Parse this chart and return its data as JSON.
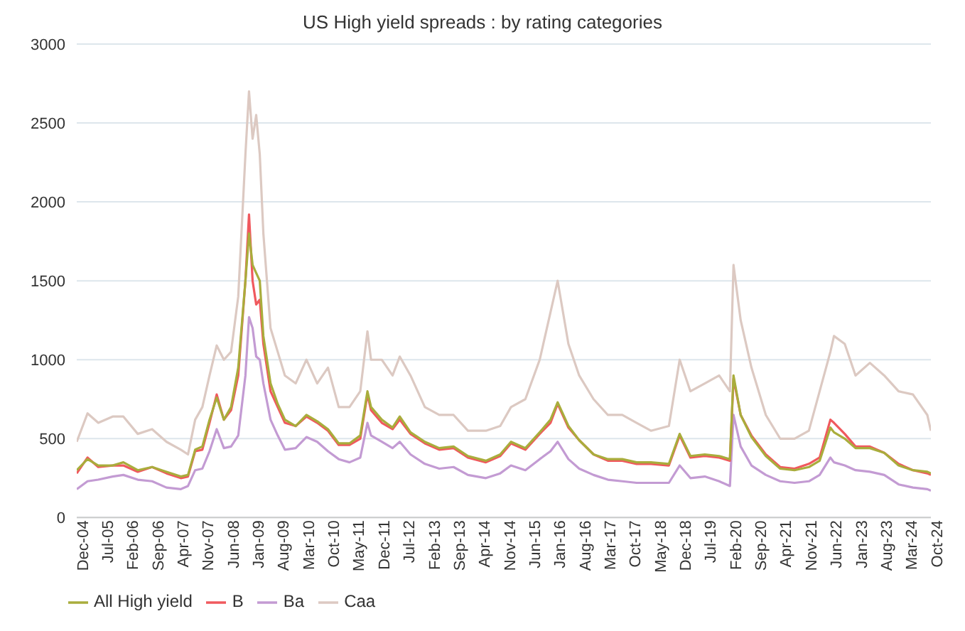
{
  "chart_data": {
    "type": "line",
    "title": "US High yield spreads : by rating categories",
    "x": [
      "2004-12",
      "2005-03",
      "2005-06",
      "2005-10",
      "2006-01",
      "2006-05",
      "2006-09",
      "2007-01",
      "2007-05",
      "2007-07",
      "2007-09",
      "2007-11",
      "2008-01",
      "2008-03",
      "2008-05",
      "2008-07",
      "2008-09",
      "2008-11",
      "2008-12",
      "2009-01",
      "2009-02",
      "2009-03",
      "2009-04",
      "2009-06",
      "2009-08",
      "2009-10",
      "2010-01",
      "2010-04",
      "2010-07",
      "2010-10",
      "2011-01",
      "2011-04",
      "2011-07",
      "2011-09",
      "2011-10",
      "2012-01",
      "2012-04",
      "2012-06",
      "2012-09",
      "2013-01",
      "2013-05",
      "2013-09",
      "2014-01",
      "2014-06",
      "2014-10",
      "2015-01",
      "2015-05",
      "2015-09",
      "2015-12",
      "2016-02",
      "2016-05",
      "2016-08",
      "2016-12",
      "2017-04",
      "2017-08",
      "2017-12",
      "2018-04",
      "2018-09",
      "2018-12",
      "2019-03",
      "2019-07",
      "2019-11",
      "2020-02",
      "2020-03",
      "2020-05",
      "2020-08",
      "2020-12",
      "2021-04",
      "2021-08",
      "2021-12",
      "2022-03",
      "2022-06",
      "2022-07",
      "2022-10",
      "2023-01",
      "2023-05",
      "2023-09",
      "2024-01",
      "2024-05",
      "2024-09",
      "2024-10"
    ],
    "series": [
      {
        "name": "Ba",
        "color": "#c39bd3",
        "values": [
          180,
          230,
          240,
          260,
          270,
          240,
          230,
          190,
          180,
          200,
          300,
          310,
          420,
          560,
          440,
          450,
          520,
          900,
          1270,
          1200,
          1020,
          1000,
          850,
          620,
          520,
          430,
          440,
          510,
          480,
          420,
          370,
          350,
          380,
          600,
          520,
          480,
          440,
          480,
          400,
          340,
          310,
          320,
          270,
          250,
          280,
          330,
          300,
          370,
          420,
          480,
          370,
          310,
          270,
          240,
          230,
          220,
          220,
          220,
          330,
          250,
          260,
          230,
          200,
          650,
          450,
          330,
          270,
          230,
          220,
          230,
          270,
          380,
          350,
          330,
          300,
          290,
          270,
          210,
          190,
          180,
          170
        ]
      },
      {
        "name": "B",
        "color": "#f0595e",
        "values": [
          280,
          380,
          320,
          330,
          330,
          290,
          320,
          280,
          250,
          260,
          420,
          430,
          600,
          780,
          620,
          680,
          900,
          1500,
          1920,
          1500,
          1350,
          1380,
          1100,
          800,
          700,
          600,
          580,
          640,
          600,
          550,
          460,
          460,
          500,
          780,
          680,
          600,
          560,
          620,
          530,
          470,
          430,
          440,
          380,
          350,
          390,
          470,
          430,
          530,
          600,
          720,
          570,
          490,
          400,
          360,
          360,
          340,
          340,
          330,
          520,
          380,
          390,
          380,
          360,
          880,
          650,
          520,
          400,
          320,
          310,
          340,
          380,
          620,
          600,
          530,
          450,
          450,
          410,
          340,
          300,
          280,
          270
        ]
      },
      {
        "name": "Caa",
        "color": "#dcc9c2",
        "values": [
          480,
          660,
          600,
          640,
          640,
          530,
          560,
          480,
          430,
          400,
          620,
          700,
          900,
          1090,
          1000,
          1050,
          1400,
          2300,
          2700,
          2400,
          2550,
          2300,
          1800,
          1200,
          1050,
          900,
          850,
          1000,
          850,
          950,
          700,
          700,
          800,
          1180,
          1000,
          1000,
          900,
          1020,
          900,
          700,
          650,
          650,
          550,
          550,
          580,
          700,
          750,
          1000,
          1300,
          1500,
          1100,
          900,
          750,
          650,
          650,
          600,
          550,
          580,
          1000,
          800,
          850,
          900,
          800,
          1600,
          1250,
          950,
          650,
          500,
          500,
          550,
          800,
          1050,
          1150,
          1100,
          900,
          980,
          900,
          800,
          780,
          650,
          550
        ]
      },
      {
        "name": "All High yield",
        "color": "#a9ad3c",
        "values": [
          300,
          370,
          330,
          330,
          350,
          300,
          320,
          290,
          260,
          270,
          430,
          450,
          620,
          760,
          620,
          700,
          950,
          1500,
          1800,
          1600,
          1550,
          1500,
          1150,
          850,
          720,
          620,
          580,
          650,
          610,
          560,
          470,
          470,
          520,
          800,
          700,
          620,
          570,
          640,
          540,
          480,
          440,
          450,
          390,
          360,
          400,
          480,
          440,
          540,
          620,
          730,
          580,
          490,
          400,
          370,
          370,
          350,
          350,
          340,
          530,
          390,
          400,
          390,
          370,
          900,
          650,
          510,
          390,
          310,
          300,
          320,
          360,
          570,
          540,
          500,
          440,
          440,
          410,
          330,
          300,
          290,
          280
        ]
      }
    ],
    "xlim": [
      "2004-12",
      "2024-10"
    ],
    "xticks": [
      {
        "value": "2004-12",
        "label": "Dec-04"
      },
      {
        "value": "2005-07",
        "label": "Jul-05"
      },
      {
        "value": "2006-02",
        "label": "Feb-06"
      },
      {
        "value": "2006-09",
        "label": "Sep-06"
      },
      {
        "value": "2007-04",
        "label": "Apr-07"
      },
      {
        "value": "2007-11",
        "label": "Nov-07"
      },
      {
        "value": "2008-06",
        "label": "Jun-08"
      },
      {
        "value": "2009-01",
        "label": "Jan-09"
      },
      {
        "value": "2009-08",
        "label": "Aug-09"
      },
      {
        "value": "2010-03",
        "label": "Mar-10"
      },
      {
        "value": "2010-10",
        "label": "Oct-10"
      },
      {
        "value": "2011-05",
        "label": "May-11"
      },
      {
        "value": "2011-12",
        "label": "Dec-11"
      },
      {
        "value": "2012-07",
        "label": "Jul-12"
      },
      {
        "value": "2013-02",
        "label": "Feb-13"
      },
      {
        "value": "2013-09",
        "label": "Sep-13"
      },
      {
        "value": "2014-04",
        "label": "Apr-14"
      },
      {
        "value": "2014-11",
        "label": "Nov-14"
      },
      {
        "value": "2015-06",
        "label": "Jun-15"
      },
      {
        "value": "2016-01",
        "label": "Jan-16"
      },
      {
        "value": "2016-08",
        "label": "Aug-16"
      },
      {
        "value": "2017-03",
        "label": "Mar-17"
      },
      {
        "value": "2017-10",
        "label": "Oct-17"
      },
      {
        "value": "2018-05",
        "label": "May-18"
      },
      {
        "value": "2018-12",
        "label": "Dec-18"
      },
      {
        "value": "2019-07",
        "label": "Jul-19"
      },
      {
        "value": "2020-02",
        "label": "Feb-20"
      },
      {
        "value": "2020-09",
        "label": "Sep-20"
      },
      {
        "value": "2021-04",
        "label": "Apr-21"
      },
      {
        "value": "2021-11",
        "label": "Nov-21"
      },
      {
        "value": "2022-06",
        "label": "Jun-22"
      },
      {
        "value": "2023-01",
        "label": "Jan-23"
      },
      {
        "value": "2023-08",
        "label": "Aug-23"
      },
      {
        "value": "2024-03",
        "label": "Mar-24"
      },
      {
        "value": "2024-10",
        "label": "Oct-24"
      }
    ],
    "ylim": [
      0,
      3000
    ],
    "yticks": [
      0,
      500,
      1000,
      1500,
      2000,
      2500,
      3000
    ],
    "grid": "y",
    "legend": "bottom left",
    "marker": "none",
    "line_style": "solid"
  }
}
